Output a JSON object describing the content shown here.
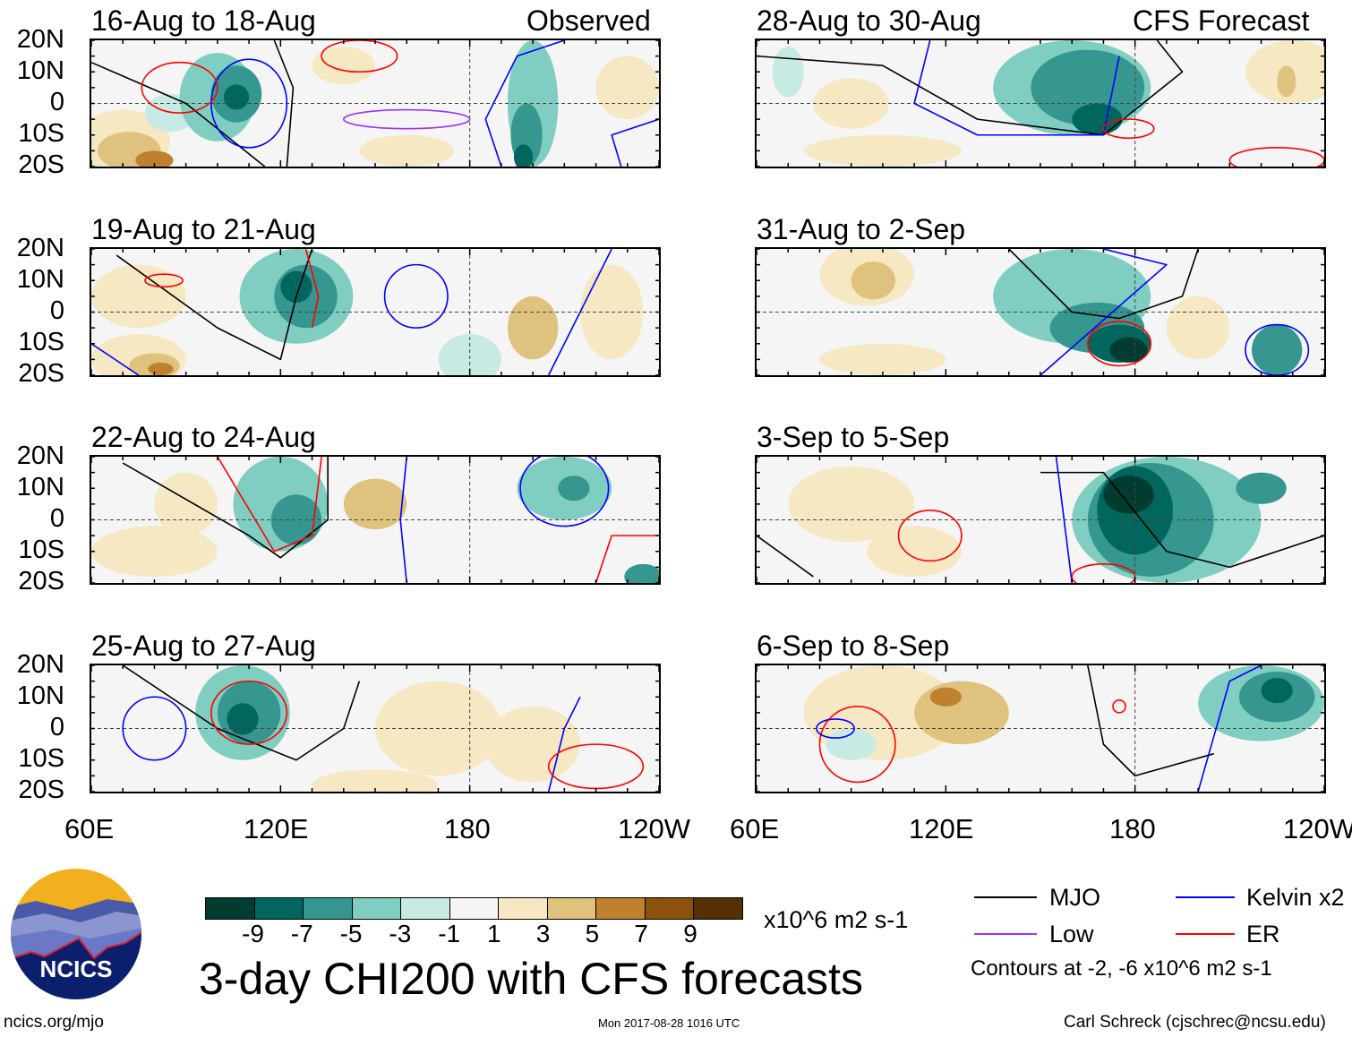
{
  "header": {
    "observed": "Observed",
    "forecast": "CFS Forecast"
  },
  "y_ticks": [
    "20N",
    "10N",
    "0",
    "10S",
    "20S"
  ],
  "x_ticks": [
    "60E",
    "120E",
    "180",
    "120W"
  ],
  "color_scale": {
    "colors": [
      "#003c30",
      "#01665e",
      "#35978f",
      "#80cdc1",
      "#c7eae5",
      "#f5f5f5",
      "#f6e8c3",
      "#dfc27d",
      "#bf812d",
      "#8c510a",
      "#543005"
    ],
    "labels": [
      "-9",
      "-7",
      "-5",
      "-3",
      "-1",
      "1",
      "3",
      "5",
      "7",
      "9"
    ],
    "units": "x10^6 m2 s-1"
  },
  "contour_colors": {
    "mjo": "#000000",
    "low": "#9933ff",
    "kelvin": "#0000ff",
    "er": "#ff0000"
  },
  "legend": {
    "mjo": "MJO",
    "low": "Low",
    "kelvin": "Kelvin x2",
    "er": "ER",
    "contours_note": "Contours at -2, -6 x10^6 m2 s-1"
  },
  "title": "3-day CHI200 with CFS forecasts",
  "footer": {
    "url": "ncics.org/mjo",
    "timestamp": "Mon 2017-08-28 1016 UTC",
    "author": "Carl Schreck (cjschrec@ncsu.edu)"
  },
  "logo_text": "NCICS",
  "panels": [
    {
      "title": "16-Aug to 18-Aug",
      "blobs": [
        [
          70,
          -12,
          15,
          10,
          1
        ],
        [
          72,
          -15,
          10,
          6,
          2
        ],
        [
          80,
          -18,
          6,
          3,
          3
        ],
        [
          85,
          -3,
          8,
          6,
          -1
        ],
        [
          140,
          12,
          10,
          6,
          1
        ],
        [
          160,
          -15,
          15,
          5,
          1
        ],
        [
          230,
          5,
          10,
          10,
          1
        ],
        [
          100,
          2,
          12,
          14,
          -2
        ],
        [
          106,
          3,
          8,
          9,
          -3
        ],
        [
          106,
          2,
          4,
          4,
          -4
        ],
        [
          200,
          0,
          8,
          20,
          -2
        ],
        [
          198,
          -10,
          5,
          10,
          -3
        ],
        [
          197,
          -17,
          3,
          4,
          -4
        ]
      ],
      "lines": [
        [
          "mjo",
          [
            [
              60,
              13
            ],
            [
              90,
              0
            ],
            [
              105,
              -12
            ],
            [
              115,
              -20
            ]
          ]
        ],
        [
          "mjo",
          [
            [
              118,
              20
            ],
            [
              124,
              5
            ],
            [
              122,
              -20
            ]
          ]
        ],
        [
          "kelvin",
          [
            [
              190,
              -20
            ],
            [
              185,
              -5
            ],
            [
              195,
              15
            ],
            [
              210,
              20
            ]
          ]
        ],
        [
          "kelvin",
          [
            [
              228,
              -20
            ],
            [
              225,
              -10
            ],
            [
              240,
              -5
            ]
          ]
        ]
      ],
      "ellipses": [
        [
          "kelvin",
          110,
          0,
          12,
          14
        ],
        [
          "er",
          88,
          5,
          12,
          8
        ],
        [
          "er",
          145,
          15,
          12,
          5
        ],
        [
          "low",
          160,
          -5,
          20,
          3
        ]
      ]
    },
    {
      "title": "19-Aug to 21-Aug",
      "blobs": [
        [
          75,
          -15,
          15,
          8,
          1
        ],
        [
          80,
          -17,
          8,
          4,
          2
        ],
        [
          82,
          -18,
          4,
          2,
          3
        ],
        [
          75,
          5,
          15,
          10,
          1
        ],
        [
          200,
          -5,
          8,
          10,
          2
        ],
        [
          225,
          0,
          10,
          15,
          1
        ],
        [
          180,
          -15,
          10,
          8,
          -1
        ],
        [
          125,
          5,
          18,
          15,
          -2
        ],
        [
          128,
          5,
          10,
          10,
          -3
        ],
        [
          125,
          8,
          5,
          5,
          -4
        ]
      ],
      "lines": [
        [
          "mjo",
          [
            [
              68,
              18
            ],
            [
              100,
              -5
            ],
            [
              120,
              -15
            ],
            [
              125,
              5
            ],
            [
              130,
              20
            ]
          ]
        ],
        [
          "kelvin",
          [
            [
              205,
              -20
            ],
            [
              215,
              0
            ],
            [
              225,
              20
            ]
          ]
        ],
        [
          "er",
          [
            [
              128,
              20
            ],
            [
              132,
              5
            ],
            [
              130,
              -5
            ]
          ]
        ],
        [
          "kelvin",
          [
            [
              60,
              -10
            ],
            [
              75,
              -20
            ]
          ]
        ]
      ],
      "ellipses": [
        [
          "kelvin",
          163,
          5,
          10,
          10
        ],
        [
          "er",
          83,
          10,
          6,
          2
        ]
      ]
    },
    {
      "title": "22-Aug to 24-Aug",
      "blobs": [
        [
          80,
          -10,
          20,
          8,
          1
        ],
        [
          90,
          5,
          10,
          10,
          1
        ],
        [
          150,
          5,
          10,
          8,
          2
        ],
        [
          120,
          5,
          15,
          15,
          -2
        ],
        [
          125,
          0,
          8,
          8,
          -3
        ],
        [
          210,
          10,
          15,
          10,
          -2
        ],
        [
          213,
          10,
          5,
          4,
          -3
        ],
        [
          235,
          -18,
          6,
          4,
          -3
        ]
      ],
      "lines": [
        [
          "mjo",
          [
            [
              70,
              18
            ],
            [
              110,
              -5
            ],
            [
              120,
              -12
            ],
            [
              135,
              0
            ],
            [
              135,
              20
            ]
          ]
        ],
        [
          "er",
          [
            [
              100,
              20
            ],
            [
              112,
              0
            ],
            [
              118,
              -10
            ],
            [
              130,
              -5
            ],
            [
              133,
              20
            ]
          ]
        ],
        [
          "kelvin",
          [
            [
              160,
              -20
            ],
            [
              158,
              0
            ],
            [
              160,
              20
            ]
          ]
        ],
        [
          "er",
          [
            [
              220,
              -20
            ],
            [
              225,
              -5
            ],
            [
              240,
              -5
            ]
          ]
        ]
      ],
      "ellipses": [
        [
          "kelvin",
          210,
          10,
          14,
          12
        ]
      ]
    },
    {
      "title": "25-Aug to 27-Aug",
      "blobs": [
        [
          170,
          0,
          20,
          15,
          1
        ],
        [
          200,
          -5,
          15,
          12,
          1
        ],
        [
          150,
          -18,
          20,
          5,
          1
        ],
        [
          108,
          5,
          15,
          15,
          -2
        ],
        [
          110,
          5,
          10,
          10,
          -3
        ],
        [
          108,
          3,
          5,
          5,
          -4
        ]
      ],
      "lines": [
        [
          "mjo",
          [
            [
              70,
              20
            ],
            [
              100,
              0
            ],
            [
              125,
              -10
            ],
            [
              140,
              0
            ],
            [
              145,
              15
            ]
          ]
        ],
        [
          "kelvin",
          [
            [
              205,
              -20
            ],
            [
              210,
              0
            ],
            [
              215,
              10
            ]
          ]
        ]
      ],
      "ellipses": [
        [
          "kelvin",
          80,
          0,
          10,
          10
        ],
        [
          "er",
          110,
          5,
          12,
          10
        ],
        [
          "er",
          220,
          -12,
          15,
          7
        ]
      ]
    },
    {
      "title": "28-Aug to 30-Aug",
      "blobs": [
        [
          90,
          0,
          12,
          8,
          1
        ],
        [
          100,
          -15,
          25,
          5,
          1
        ],
        [
          230,
          10,
          15,
          10,
          1
        ],
        [
          228,
          7,
          3,
          5,
          2
        ],
        [
          70,
          10,
          5,
          8,
          -1
        ],
        [
          160,
          5,
          25,
          15,
          -2
        ],
        [
          165,
          5,
          18,
          12,
          -3
        ],
        [
          168,
          -5,
          8,
          5,
          -4
        ]
      ],
      "lines": [
        [
          "mjo",
          [
            [
              60,
              15
            ],
            [
              100,
              12
            ],
            [
              130,
              -5
            ],
            [
              170,
              -10
            ],
            [
              195,
              10
            ],
            [
              187,
              20
            ]
          ]
        ],
        [
          "kelvin",
          [
            [
              115,
              20
            ],
            [
              110,
              0
            ],
            [
              130,
              -10
            ],
            [
              170,
              -10
            ],
            [
              175,
              15
            ]
          ]
        ]
      ],
      "ellipses": [
        [
          "er",
          178,
          -8,
          8,
          3
        ],
        [
          "er",
          225,
          -18,
          15,
          4
        ]
      ]
    },
    {
      "title": "31-Aug to 2-Sep",
      "blobs": [
        [
          95,
          12,
          15,
          10,
          1
        ],
        [
          97,
          10,
          7,
          6,
          2
        ],
        [
          100,
          -15,
          20,
          5,
          1
        ],
        [
          200,
          -5,
          10,
          10,
          1
        ],
        [
          160,
          5,
          25,
          15,
          -2
        ],
        [
          168,
          -5,
          15,
          8,
          -3
        ],
        [
          175,
          -10,
          10,
          6,
          -4
        ],
        [
          178,
          -12,
          6,
          4,
          -5
        ],
        [
          225,
          -12,
          8,
          8,
          -3
        ]
      ],
      "lines": [
        [
          "mjo",
          [
            [
              140,
              20
            ],
            [
              160,
              0
            ],
            [
              175,
              -2
            ],
            [
              195,
              5
            ],
            [
              200,
              20
            ]
          ]
        ],
        [
          "kelvin",
          [
            [
              150,
              -20
            ],
            [
              190,
              15
            ],
            [
              170,
              20
            ]
          ]
        ]
      ],
      "ellipses": [
        [
          "er",
          175,
          -10,
          10,
          7
        ],
        [
          "kelvin",
          225,
          -12,
          10,
          8
        ]
      ]
    },
    {
      "title": "3-Sep to 5-Sep",
      "blobs": [
        [
          90,
          5,
          20,
          12,
          1
        ],
        [
          110,
          -10,
          15,
          8,
          1
        ],
        [
          190,
          0,
          30,
          20,
          -2
        ],
        [
          185,
          0,
          20,
          18,
          -3
        ],
        [
          180,
          3,
          12,
          14,
          -4
        ],
        [
          178,
          8,
          8,
          6,
          -5
        ],
        [
          220,
          10,
          8,
          5,
          -3
        ]
      ],
      "lines": [
        [
          "mjo",
          [
            [
              150,
              15
            ],
            [
              170,
              15
            ],
            [
              190,
              -10
            ],
            [
              210,
              -15
            ],
            [
              240,
              -5
            ]
          ]
        ],
        [
          "kelvin",
          [
            [
              160,
              -20
            ],
            [
              155,
              20
            ]
          ]
        ],
        [
          "mjo",
          [
            [
              60,
              -5
            ],
            [
              78,
              -18
            ]
          ]
        ]
      ],
      "ellipses": [
        [
          "er",
          115,
          -5,
          10,
          8
        ],
        [
          "er",
          170,
          -18,
          10,
          4
        ]
      ]
    },
    {
      "title": "6-Sep to 8-Sep",
      "blobs": [
        [
          100,
          5,
          25,
          15,
          1
        ],
        [
          125,
          5,
          15,
          10,
          2
        ],
        [
          120,
          10,
          5,
          3,
          3
        ],
        [
          90,
          -5,
          8,
          5,
          -1
        ],
        [
          220,
          8,
          20,
          12,
          -2
        ],
        [
          225,
          10,
          12,
          8,
          -3
        ],
        [
          225,
          12,
          5,
          4,
          -4
        ]
      ],
      "lines": [
        [
          "mjo",
          [
            [
              165,
              20
            ],
            [
              170,
              -5
            ],
            [
              180,
              -15
            ],
            [
              205,
              -8
            ]
          ]
        ],
        [
          "kelvin",
          [
            [
              200,
              -20
            ],
            [
              210,
              15
            ],
            [
              220,
              20
            ]
          ]
        ]
      ],
      "ellipses": [
        [
          "er",
          92,
          -5,
          12,
          12
        ],
        [
          "kelvin",
          85,
          0,
          6,
          3
        ],
        [
          "er",
          175,
          7,
          2,
          2
        ]
      ]
    }
  ]
}
